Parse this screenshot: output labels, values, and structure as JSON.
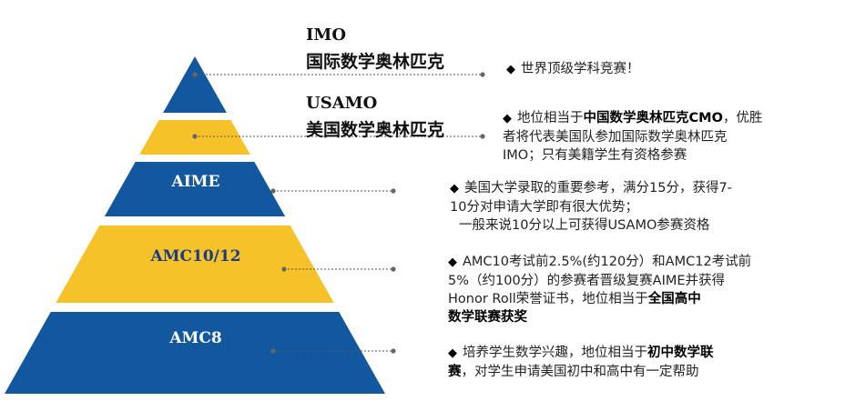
{
  "tiers": [
    {
      "en": "IMO",
      "cn": "国际数学奥林匹克"
    },
    {
      "en": "USAMO",
      "cn": "美国数学奥林匹克"
    },
    {
      "label": "AIME"
    },
    {
      "label": "AMC10/12"
    },
    {
      "label": "AMC8"
    }
  ],
  "descriptions": [
    {
      "bullet": "◆",
      "lines": [
        {
          "pre": "世界顶级学科竞赛！",
          "bold": "",
          "post": ""
        }
      ]
    },
    {
      "bullet": "◆",
      "lines": [
        {
          "pre": "地位相当于",
          "bold": "中国数学奥林匹克CMO",
          "post": "，优胜"
        },
        {
          "pre": "者将代表美国队参加国际数学奥林匹克",
          "bold": "",
          "post": ""
        },
        {
          "pre": "IMO；只有美籍学生有资格参赛",
          "bold": "",
          "post": ""
        }
      ]
    },
    {
      "bullet": "◆",
      "lines": [
        {
          "pre": "美国大学录取的重要参考，满分15分，获得7-",
          "bold": "",
          "post": ""
        },
        {
          "pre": "10分对申请大学即有很大优势；",
          "bold": "",
          "post": ""
        },
        {
          "pre": "一般来说10分以上可获得USAMO参赛资格",
          "bold": "",
          "post": ""
        }
      ]
    },
    {
      "bullet": "◆",
      "lines": [
        {
          "pre": "AMC10考试前2.5%(约120分）和AMC12考试前",
          "bold": "",
          "post": ""
        },
        {
          "pre": "5%（约100分）的参赛者晋级复赛AIME并获得",
          "bold": "",
          "post": ""
        },
        {
          "pre": "Honor Roll荣誉证书，地位相当于",
          "bold": "全国高中",
          "post": ""
        },
        {
          "pre": "",
          "bold": "数学联赛获奖",
          "post": ""
        }
      ]
    },
    {
      "bullet": "◆",
      "lines": [
        {
          "pre": "培养学生数学兴趣，地位相当于",
          "bold": "初中数学联",
          "post": ""
        },
        {
          "pre": "",
          "bold": "赛",
          "post": "，对学生申请美国初中和高中有一定帮助"
        }
      ]
    }
  ],
  "colors": {
    "blue": "#13579f",
    "yellow": "#f6c22a",
    "connector": "#555555"
  }
}
